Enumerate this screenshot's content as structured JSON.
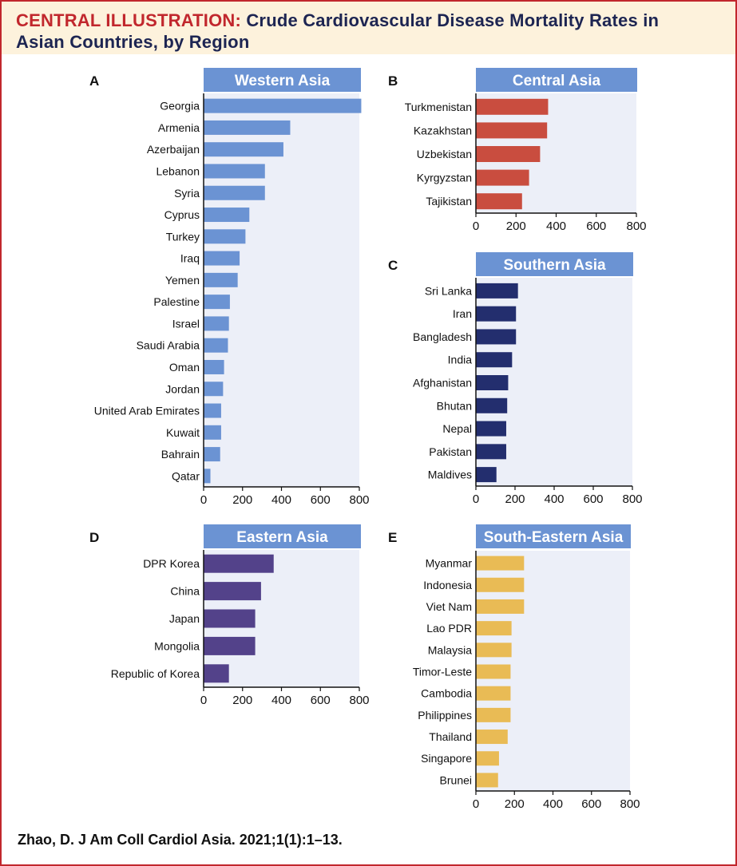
{
  "header": {
    "label": "CENTRAL ILLUSTRATION:",
    "title_line1": "Crude Cardiovascular Disease Mortality Rates in",
    "title_line2": "Asian Countries, by Region"
  },
  "citation": "Zhao, D. J Am Coll Cardiol Asia. 2021;1(1):1–13.",
  "colors": {
    "title_bar": "#6b93d3",
    "plot_bg": "#eceff8",
    "western": "#6b93d3",
    "central": "#c94d3f",
    "southern": "#232e6e",
    "eastern": "#53428a",
    "southeastern": "#e9bb55"
  },
  "chart_data": [
    {
      "panel": "A",
      "title": "Western Asia",
      "type": "bar",
      "orientation": "horizontal",
      "color_key": "western",
      "categories": [
        "Georgia",
        "Armenia",
        "Azerbaijan",
        "Lebanon",
        "Syria",
        "Cyprus",
        "Turkey",
        "Iraq",
        "Yemen",
        "Palestine",
        "Israel",
        "Saudi Arabia",
        "Oman",
        "Jordan",
        "United Arab Emirates",
        "Kuwait",
        "Bahrain",
        "Qatar"
      ],
      "values": [
        810,
        445,
        410,
        315,
        315,
        235,
        215,
        185,
        175,
        135,
        130,
        125,
        105,
        100,
        90,
        90,
        85,
        35
      ],
      "xlim": [
        0,
        800
      ],
      "xticks": [
        "0",
        "200",
        "400",
        "600",
        "800"
      ]
    },
    {
      "panel": "B",
      "title": "Central Asia",
      "type": "bar",
      "orientation": "horizontal",
      "color_key": "central",
      "categories": [
        "Turkmenistan",
        "Kazakhstan",
        "Uzbekistan",
        "Kyrgyzstan",
        "Tajikistan"
      ],
      "values": [
        360,
        355,
        320,
        265,
        230
      ],
      "xlim": [
        0,
        800
      ],
      "xticks": [
        "0",
        "200",
        "400",
        "600",
        "800"
      ]
    },
    {
      "panel": "C",
      "title": "Southern Asia",
      "type": "bar",
      "orientation": "horizontal",
      "color_key": "southern",
      "categories": [
        "Sri Lanka",
        "Iran",
        "Bangladesh",
        "India",
        "Afghanistan",
        "Bhutan",
        "Nepal",
        "Pakistan",
        "Maldives"
      ],
      "values": [
        215,
        205,
        205,
        185,
        165,
        160,
        155,
        155,
        105
      ],
      "xlim": [
        0,
        800
      ],
      "xticks": [
        "0",
        "200",
        "400",
        "600",
        "800"
      ]
    },
    {
      "panel": "D",
      "title": "Eastern Asia",
      "type": "bar",
      "orientation": "horizontal",
      "color_key": "eastern",
      "categories": [
        "DPR Korea",
        "China",
        "Japan",
        "Mongolia",
        "Republic of Korea"
      ],
      "values": [
        360,
        295,
        265,
        265,
        130
      ],
      "xlim": [
        0,
        800
      ],
      "xticks": [
        "0",
        "200",
        "400",
        "600",
        "800"
      ]
    },
    {
      "panel": "E",
      "title": "South-Eastern Asia",
      "type": "bar",
      "orientation": "horizontal",
      "color_key": "southeastern",
      "categories": [
        "Myanmar",
        "Indonesia",
        "Viet Nam",
        "Lao PDR",
        "Malaysia",
        "Timor-Leste",
        "Cambodia",
        "Philippines",
        "Thailand",
        "Singapore",
        "Brunei"
      ],
      "values": [
        250,
        250,
        250,
        185,
        185,
        180,
        180,
        180,
        165,
        120,
        115
      ],
      "xlim": [
        0,
        800
      ],
      "xticks": [
        "0",
        "200",
        "400",
        "600",
        "800"
      ]
    }
  ]
}
